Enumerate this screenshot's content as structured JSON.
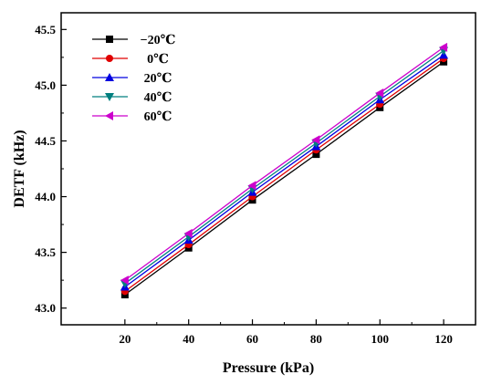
{
  "chart_data": {
    "type": "line",
    "xlabel": "Pressure (kPa)",
    "ylabel": "DETF (kHz)",
    "x": [
      20,
      40,
      60,
      80,
      100,
      120
    ],
    "xlim": [
      0,
      130
    ],
    "ylim": [
      42.85,
      45.65
    ],
    "xticks": [
      20,
      40,
      60,
      80,
      100,
      120
    ],
    "yticks": [
      "43.0",
      "43.5",
      "44.0",
      "44.5",
      "45.0",
      "45.5"
    ],
    "grid": false,
    "legend_position": "top-left",
    "series": [
      {
        "name": "−20℃",
        "values": [
          43.12,
          43.54,
          43.97,
          44.38,
          44.8,
          45.21
        ],
        "color": "#000000",
        "marker": "square"
      },
      {
        "name": "0℃",
        "values": [
          43.15,
          43.57,
          44.0,
          44.42,
          44.83,
          45.24
        ],
        "color": "#e00000",
        "marker": "circle"
      },
      {
        "name": "20℃",
        "values": [
          43.19,
          43.61,
          44.04,
          44.45,
          44.87,
          45.27
        ],
        "color": "#0000e0",
        "marker": "triangle-up"
      },
      {
        "name": "40℃",
        "values": [
          43.22,
          43.64,
          44.07,
          44.48,
          44.9,
          45.31
        ],
        "color": "#007f7f",
        "marker": "triangle-down"
      },
      {
        "name": "60℃",
        "values": [
          43.25,
          43.67,
          44.1,
          44.51,
          44.93,
          45.34
        ],
        "color": "#cc00cc",
        "marker": "triangle-left"
      }
    ]
  }
}
